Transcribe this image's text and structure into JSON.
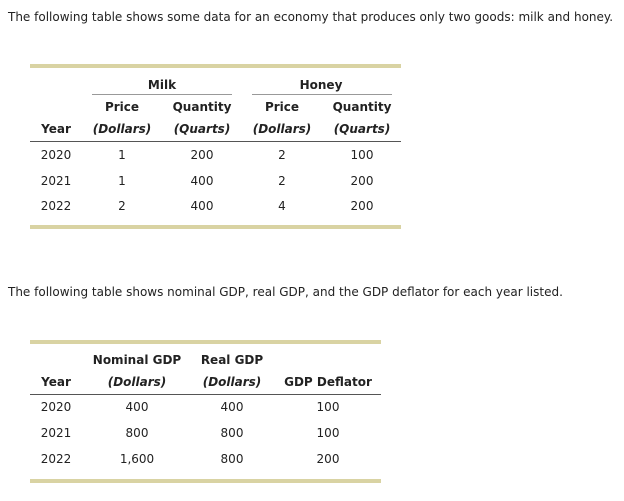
{
  "intro1": "The following table shows some data for an economy that produces only two goods: milk and honey.",
  "table1": {
    "groups": [
      "Milk",
      "Honey"
    ],
    "subheaders": [
      "Price",
      "Quantity",
      "Price",
      "Quantity"
    ],
    "units": [
      "Year",
      "(Dollars)",
      "(Quarts)",
      "(Dollars)",
      "(Quarts)"
    ],
    "rows": [
      [
        "2020",
        "1",
        "200",
        "2",
        "100"
      ],
      [
        "2021",
        "1",
        "400",
        "2",
        "200"
      ],
      [
        "2022",
        "2",
        "400",
        "4",
        "200"
      ]
    ]
  },
  "intro2": "The following table shows nominal GDP, real GDP, and the GDP deflator for each year listed.",
  "table2": {
    "headers": [
      "Nominal GDP",
      "Real GDP"
    ],
    "units": [
      "Year",
      "(Dollars)",
      "(Dollars)",
      "GDP Deflator"
    ],
    "rows": [
      [
        "2020",
        "400",
        "400",
        "100"
      ],
      [
        "2021",
        "800",
        "800",
        "100"
      ],
      [
        "2022",
        "1,600",
        "800",
        "200"
      ]
    ]
  }
}
